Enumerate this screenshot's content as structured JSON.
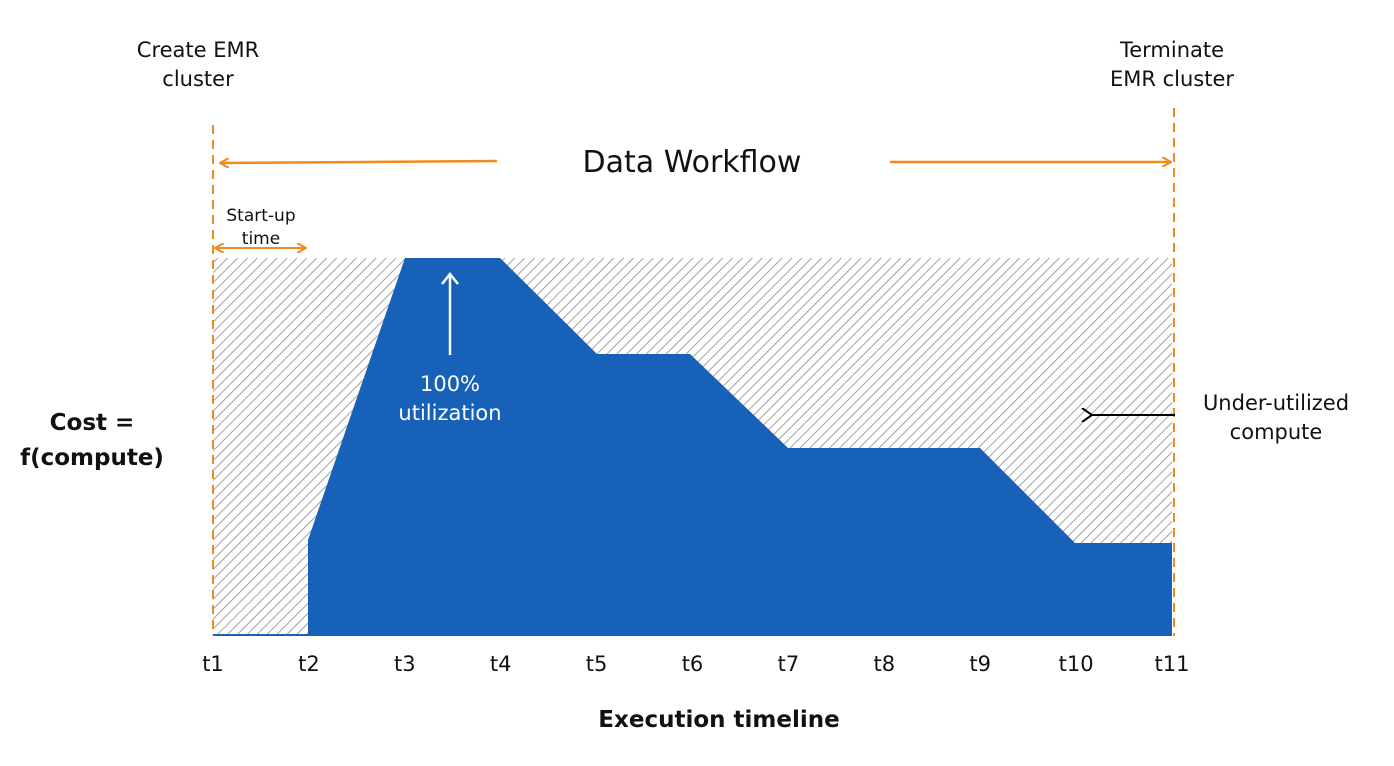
{
  "labels": {
    "create": [
      "Create EMR",
      "cluster"
    ],
    "terminate": [
      "Terminate",
      "EMR cluster"
    ],
    "workflow": "Data Workflow",
    "startup": [
      "Start-up",
      "time"
    ],
    "utilization": [
      "100%",
      "utilization"
    ],
    "under": [
      "Under-utilized",
      "compute"
    ],
    "cost": [
      "Cost =",
      "f(compute)"
    ],
    "xlabel": "Execution timeline"
  },
  "timeline": [
    "t1",
    "t2",
    "t3",
    "t4",
    "t5",
    "t6",
    "t7",
    "t8",
    "t9",
    "t10",
    "t11"
  ]
}
